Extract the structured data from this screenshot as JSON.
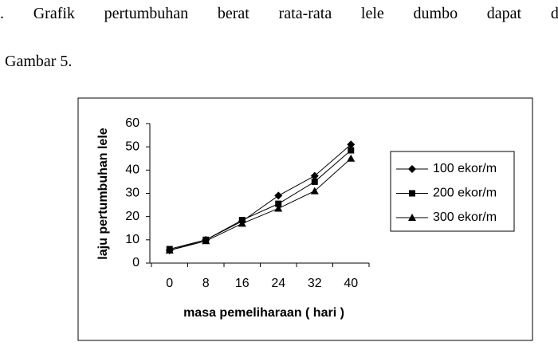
{
  "document": {
    "line1": [
      ".",
      "Grafik",
      "pertumbuhan",
      "berat",
      "rata-rata",
      "lele",
      "dumbo",
      "dapat",
      "dil"
    ],
    "line2": "Gambar 5."
  },
  "chart_data": {
    "type": "line",
    "x_label": "masa pemeliharaan ( hari )",
    "y_label": "laju pertumbuhan lele",
    "categories": [
      "0",
      "8",
      "16",
      "24",
      "32",
      "40"
    ],
    "series": [
      {
        "name": "100 ekor/m",
        "color": "#000000",
        "marker": "diamond",
        "values": [
          5.5,
          10,
          18,
          29,
          37.5,
          51
        ]
      },
      {
        "name": "200 ekor/m",
        "color": "#000000",
        "marker": "square",
        "values": [
          6,
          10,
          18.5,
          25.5,
          35,
          48.5
        ]
      },
      {
        "name": "300 ekor/m",
        "color": "#000000",
        "marker": "triangle",
        "values": [
          5.5,
          9.5,
          17,
          23.5,
          31,
          45
        ]
      }
    ],
    "ylim": [
      0,
      60
    ],
    "yticks": [
      0,
      10,
      20,
      30,
      40,
      50,
      60
    ],
    "grid": false,
    "legend": "right"
  }
}
